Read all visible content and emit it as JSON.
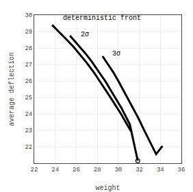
{
  "chart_data": {
    "type": "line",
    "xlabel": "weight",
    "ylabel": "average deflection",
    "xlim": [
      22,
      36
    ],
    "ylim": [
      21,
      30
    ],
    "xticks": [
      22,
      24,
      26,
      28,
      30,
      32,
      34,
      36
    ],
    "yticks": [
      22,
      23,
      24,
      25,
      26,
      27,
      28,
      29,
      30
    ],
    "grid": true,
    "series": [
      {
        "color": "#000000",
        "x": [
          23.7,
          24.1,
          24.6,
          25.1,
          25.7,
          26.3,
          27.0,
          27.7,
          28.5,
          29.3,
          30.2,
          31.2
        ],
        "values": [
          29.4,
          29.15,
          28.85,
          28.5,
          28.1,
          27.65,
          27.1,
          26.5,
          25.75,
          24.95,
          24.05,
          22.95
        ]
      },
      {
        "color": "#000000",
        "x": [
          25.4,
          25.8,
          26.3,
          26.9,
          27.5,
          28.1,
          28.8,
          29.5,
          30.3,
          31.1,
          31.85
        ],
        "values": [
          28.75,
          28.45,
          28.1,
          27.65,
          27.15,
          26.6,
          25.95,
          25.2,
          24.35,
          23.35,
          21.15
        ]
      },
      {
        "color": "#000000",
        "x": [
          28.5,
          29.0,
          29.5,
          30.0,
          30.6,
          31.2,
          31.9,
          32.5,
          33.1,
          33.6,
          34.2
        ],
        "values": [
          27.5,
          27.05,
          26.55,
          26.0,
          25.3,
          24.6,
          23.75,
          22.95,
          22.15,
          21.55,
          22.05
        ]
      },
      {
        "type": "scatter",
        "marker": "circle-open",
        "color": "#000000",
        "x": [
          31.85
        ],
        "values": [
          21.15
        ]
      }
    ],
    "annotations": [
      {
        "text": "deterministic front",
        "x": 24.6,
        "y": 29.52,
        "color": "#000000"
      },
      {
        "text": "2σ",
        "x": 26.3,
        "y": 28.5,
        "color": "#000000"
      },
      {
        "text": "3σ",
        "x": 29.3,
        "y": 27.35,
        "color": "#000000"
      }
    ]
  }
}
